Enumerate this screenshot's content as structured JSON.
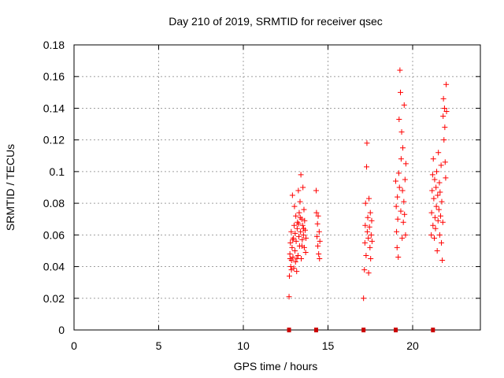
{
  "chart_data": {
    "type": "scatter",
    "title": "Day 210 of 2019, SRMTID for receiver qsec",
    "xlabel": "GPS time / hours",
    "ylabel": "SRMTID / TECUs",
    "xlim": [
      0,
      24
    ],
    "ylim": [
      0,
      0.18
    ],
    "x_ticks": [
      0,
      5,
      10,
      15,
      20
    ],
    "y_ticks": [
      0,
      0.02,
      0.04,
      0.06,
      0.08,
      0.1,
      0.12,
      0.14,
      0.16,
      0.18
    ],
    "x_tick_labels": [
      "0",
      "5",
      "10",
      "15",
      "20"
    ],
    "y_tick_labels": [
      "0",
      "0.02",
      "0.04",
      "0.06",
      "0.08",
      "0.1",
      "0.12",
      "0.14",
      "0.16",
      "0.18"
    ],
    "grid": true,
    "marker": "+",
    "colors": {
      "series": "#ff0000",
      "zero_marks": "#cc0000",
      "grid": "#a0a0a0",
      "axis": "#000000"
    },
    "series": [
      {
        "name": "SRMTID",
        "points": [
          [
            12.7,
            0.021
          ],
          [
            12.72,
            0.034
          ],
          [
            12.75,
            0.048
          ],
          [
            12.78,
            0.055
          ],
          [
            12.8,
            0.04
          ],
          [
            12.83,
            0.062
          ],
          [
            12.85,
            0.044
          ],
          [
            12.88,
            0.052
          ],
          [
            12.9,
            0.085
          ],
          [
            12.93,
            0.046
          ],
          [
            12.95,
            0.058
          ],
          [
            12.98,
            0.039
          ],
          [
            13.0,
            0.066
          ],
          [
            13.02,
            0.078
          ],
          [
            13.05,
            0.05
          ],
          [
            13.08,
            0.043
          ],
          [
            13.1,
            0.072
          ],
          [
            13.12,
            0.056
          ],
          [
            13.15,
            0.037
          ],
          [
            13.18,
            0.064
          ],
          [
            13.2,
            0.068
          ],
          [
            13.23,
            0.047
          ],
          [
            13.25,
            0.088
          ],
          [
            13.28,
            0.059
          ],
          [
            13.3,
            0.074
          ],
          [
            13.32,
            0.053
          ],
          [
            13.35,
            0.081
          ],
          [
            13.38,
            0.062
          ],
          [
            13.4,
            0.098
          ],
          [
            13.42,
            0.045
          ],
          [
            13.45,
            0.07
          ],
          [
            13.48,
            0.057
          ],
          [
            13.5,
            0.066
          ],
          [
            13.52,
            0.09
          ],
          [
            13.55,
            0.06
          ],
          [
            13.58,
            0.076
          ],
          [
            13.6,
            0.052
          ],
          [
            13.62,
            0.069
          ],
          [
            13.65,
            0.063
          ],
          [
            13.68,
            0.049
          ],
          [
            13.7,
            0.058
          ],
          [
            12.76,
            0.045
          ],
          [
            12.84,
            0.038
          ],
          [
            12.92,
            0.057
          ],
          [
            13.06,
            0.061
          ],
          [
            13.16,
            0.045
          ],
          [
            13.26,
            0.067
          ],
          [
            13.36,
            0.071
          ],
          [
            13.46,
            0.053
          ],
          [
            13.56,
            0.064
          ],
          [
            14.3,
            0.088
          ],
          [
            14.32,
            0.074
          ],
          [
            14.35,
            0.059
          ],
          [
            14.38,
            0.067
          ],
          [
            14.4,
            0.053
          ],
          [
            14.42,
            0.072
          ],
          [
            14.45,
            0.048
          ],
          [
            14.48,
            0.062
          ],
          [
            14.5,
            0.045
          ],
          [
            14.52,
            0.056
          ],
          [
            17.1,
            0.02
          ],
          [
            17.15,
            0.038
          ],
          [
            17.18,
            0.055
          ],
          [
            17.2,
            0.066
          ],
          [
            17.22,
            0.08
          ],
          [
            17.25,
            0.047
          ],
          [
            17.28,
            0.103
          ],
          [
            17.3,
            0.118
          ],
          [
            17.32,
            0.062
          ],
          [
            17.35,
            0.071
          ],
          [
            17.38,
            0.058
          ],
          [
            17.4,
            0.036
          ],
          [
            17.42,
            0.083
          ],
          [
            17.45,
            0.065
          ],
          [
            17.48,
            0.052
          ],
          [
            17.5,
            0.074
          ],
          [
            17.52,
            0.045
          ],
          [
            17.55,
            0.06
          ],
          [
            17.58,
            0.069
          ],
          [
            17.6,
            0.056
          ],
          [
            19.0,
            0.094
          ],
          [
            19.03,
            0.078
          ],
          [
            19.05,
            0.062
          ],
          [
            19.08,
            0.052
          ],
          [
            19.1,
            0.084
          ],
          [
            19.12,
            0.07
          ],
          [
            19.15,
            0.046
          ],
          [
            19.18,
            0.099
          ],
          [
            19.2,
            0.133
          ],
          [
            19.22,
            0.09
          ],
          [
            19.25,
            0.164
          ],
          [
            19.28,
            0.15
          ],
          [
            19.3,
            0.075
          ],
          [
            19.32,
            0.108
          ],
          [
            19.35,
            0.125
          ],
          [
            19.38,
            0.058
          ],
          [
            19.4,
            0.088
          ],
          [
            19.42,
            0.115
          ],
          [
            19.45,
            0.068
          ],
          [
            19.48,
            0.081
          ],
          [
            19.5,
            0.142
          ],
          [
            19.52,
            0.073
          ],
          [
            19.55,
            0.095
          ],
          [
            19.58,
            0.06
          ],
          [
            19.6,
            0.105
          ],
          [
            21.1,
            0.06
          ],
          [
            21.12,
            0.074
          ],
          [
            21.15,
            0.088
          ],
          [
            21.18,
            0.098
          ],
          [
            21.2,
            0.066
          ],
          [
            21.22,
            0.108
          ],
          [
            21.25,
            0.083
          ],
          [
            21.28,
            0.058
          ],
          [
            21.3,
            0.095
          ],
          [
            21.32,
            0.071
          ],
          [
            21.35,
            0.064
          ],
          [
            21.38,
            0.09
          ],
          [
            21.4,
            0.078
          ],
          [
            21.42,
            0.1
          ],
          [
            21.45,
            0.05
          ],
          [
            21.48,
            0.085
          ],
          [
            21.5,
            0.069
          ],
          [
            21.52,
            0.112
          ],
          [
            21.55,
            0.076
          ],
          [
            21.58,
            0.093
          ],
          [
            21.6,
            0.06
          ],
          [
            21.62,
            0.087
          ],
          [
            21.65,
            0.072
          ],
          [
            21.68,
            0.104
          ],
          [
            21.7,
            0.055
          ],
          [
            21.72,
            0.081
          ],
          [
            21.75,
            0.044
          ],
          [
            21.78,
            0.068
          ],
          [
            21.8,
            0.135
          ],
          [
            21.82,
            0.146
          ],
          [
            21.85,
            0.12
          ],
          [
            21.88,
            0.14
          ],
          [
            21.9,
            0.128
          ],
          [
            21.92,
            0.106
          ],
          [
            21.95,
            0.096
          ],
          [
            21.98,
            0.155
          ],
          [
            22.0,
            0.138
          ]
        ]
      }
    ],
    "zero_points": [
      12.7,
      14.3,
      17.1,
      19.0,
      21.2
    ]
  }
}
